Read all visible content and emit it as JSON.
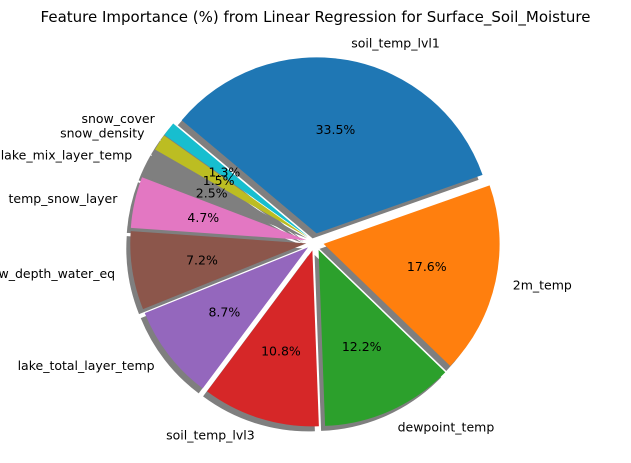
{
  "chart_data": {
    "type": "pie",
    "title": "Feature Importance (%) from Linear Regression for Surface_Soil_Moisture",
    "slices": [
      {
        "label": "soil_temp_lvl1",
        "value": 33.5,
        "pct_label": "33.5%",
        "color": "#1f77b4"
      },
      {
        "label": "2m_temp",
        "value": 17.6,
        "pct_label": "17.6%",
        "color": "#ff7f0e"
      },
      {
        "label": "dewpoint_temp",
        "value": 12.2,
        "pct_label": "12.2%",
        "color": "#2ca02c"
      },
      {
        "label": "soil_temp_lvl3",
        "value": 10.8,
        "pct_label": "10.8%",
        "color": "#d62728"
      },
      {
        "label": "lake_total_layer_temp",
        "value": 8.7,
        "pct_label": "8.7%",
        "color": "#9467bd"
      },
      {
        "label": "snow_depth_water_eq",
        "value": 7.2,
        "pct_label": "7.2%",
        "color": "#8c564b"
      },
      {
        "label": "temp_snow_layer",
        "value": 4.7,
        "pct_label": "4.7%",
        "color": "#e377c2"
      },
      {
        "label": "lake_mix_layer_temp",
        "value": 2.5,
        "pct_label": "2.5%",
        "color": "#7f7f7f"
      },
      {
        "label": "snow_density",
        "value": 1.5,
        "pct_label": "1.5%",
        "color": "#bcbd22"
      },
      {
        "label": "snow_cover",
        "value": 1.3,
        "pct_label": "1.3%",
        "color": "#17becf"
      }
    ],
    "start_angle_deg": 140,
    "direction": "clockwise",
    "explode": 0.05,
    "shadow": true,
    "legend": "none"
  }
}
